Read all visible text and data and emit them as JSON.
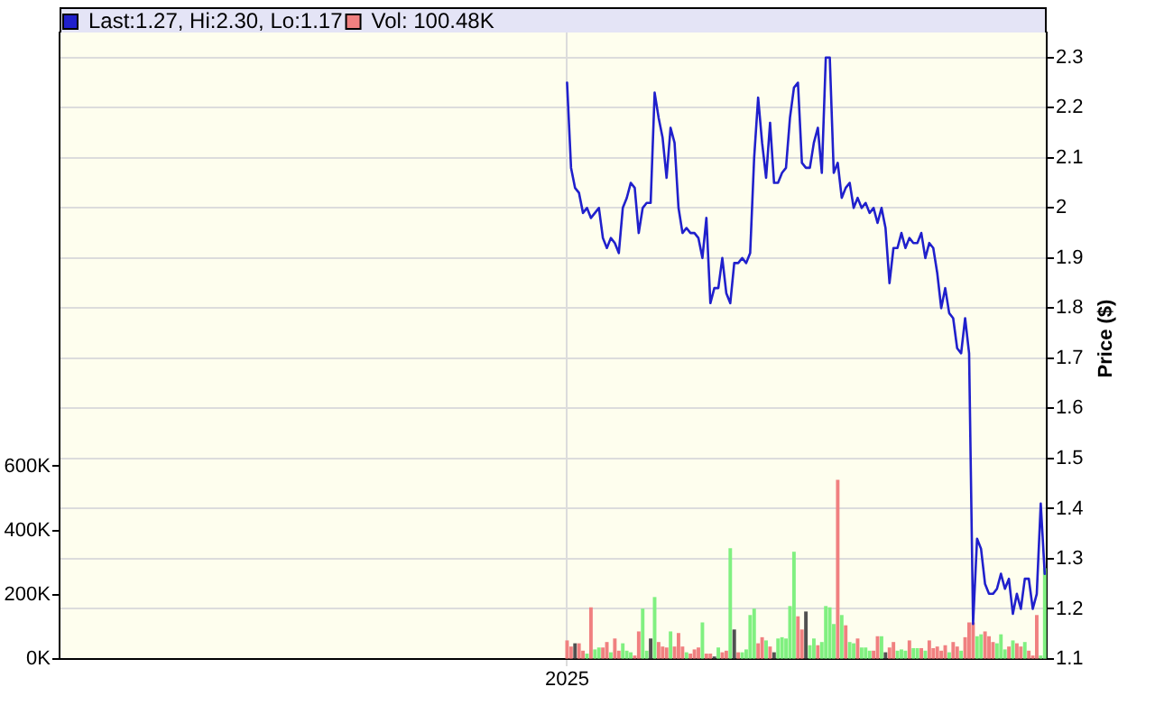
{
  "chart_data": {
    "type": "line",
    "categories": [
      null,
      null,
      null,
      null,
      null,
      null,
      null,
      null,
      null,
      null,
      null,
      null,
      null,
      null,
      null,
      null,
      null,
      null,
      null,
      null,
      null,
      null,
      null,
      null,
      null,
      null,
      null,
      null,
      null,
      null,
      null,
      null,
      null,
      null,
      null,
      null,
      null,
      null,
      null,
      null,
      null,
      null,
      null,
      null,
      null,
      null,
      null,
      null,
      null,
      null,
      null,
      null,
      null,
      null,
      null,
      null,
      null,
      null,
      null,
      null,
      null,
      null,
      null,
      null,
      null,
      null,
      null,
      null,
      null,
      null,
      null,
      null,
      null,
      null,
      null,
      null,
      null,
      null,
      null,
      null,
      null,
      null,
      null,
      null,
      null,
      null,
      null,
      null,
      null,
      null,
      null,
      null,
      null,
      null,
      null,
      null,
      null,
      null,
      null,
      null,
      null,
      null,
      null,
      null,
      null,
      null,
      null,
      null,
      null,
      null,
      null,
      null,
      null,
      null,
      null,
      null,
      null,
      null,
      null,
      null,
      null,
      null,
      null,
      null,
      null,
      null,
      null,
      "2025",
      null,
      null,
      null,
      null,
      null,
      null,
      null,
      null,
      null,
      null,
      null,
      null,
      null,
      null,
      null,
      null,
      null,
      null,
      null,
      null,
      null,
      null,
      null,
      null,
      null,
      null,
      null,
      null,
      null,
      null,
      null,
      null,
      null,
      null,
      null,
      null,
      null,
      null,
      null,
      null,
      null,
      null,
      null,
      null,
      null,
      null,
      null,
      null,
      null,
      null,
      null,
      null,
      null,
      null,
      null,
      null,
      null,
      null,
      null,
      null,
      null,
      null,
      null,
      null,
      null,
      null,
      null,
      null,
      null,
      null,
      null,
      null,
      null,
      null,
      null,
      null,
      null,
      null,
      null,
      null,
      null,
      null,
      null,
      null,
      null,
      null,
      null,
      null,
      null,
      null,
      null,
      null,
      null,
      null,
      null,
      null,
      null,
      null,
      null,
      null,
      null,
      null,
      null,
      null,
      null,
      null,
      null,
      null,
      null,
      null,
      null,
      null,
      null,
      null,
      null,
      null,
      null,
      null,
      null,
      null
    ],
    "series": [
      {
        "name": "Last:1.27, Hi:2.30, Lo:1.17",
        "axis": "y2",
        "color": "#2020cc",
        "values": [
          null,
          null,
          null,
          null,
          null,
          null,
          null,
          null,
          null,
          null,
          null,
          null,
          null,
          null,
          null,
          null,
          null,
          null,
          null,
          null,
          null,
          null,
          null,
          null,
          null,
          null,
          null,
          null,
          null,
          null,
          null,
          null,
          null,
          null,
          null,
          null,
          null,
          null,
          null,
          null,
          null,
          null,
          null,
          null,
          null,
          null,
          null,
          null,
          null,
          null,
          null,
          null,
          null,
          null,
          null,
          null,
          null,
          null,
          null,
          null,
          null,
          null,
          null,
          null,
          null,
          null,
          null,
          null,
          null,
          null,
          null,
          null,
          null,
          null,
          null,
          null,
          null,
          null,
          null,
          null,
          null,
          null,
          null,
          null,
          null,
          null,
          null,
          null,
          null,
          null,
          null,
          null,
          null,
          null,
          null,
          null,
          null,
          null,
          null,
          null,
          null,
          null,
          null,
          null,
          null,
          null,
          null,
          null,
          null,
          null,
          null,
          null,
          null,
          null,
          null,
          null,
          null,
          null,
          null,
          null,
          null,
          null,
          null,
          null,
          null,
          null,
          null,
          2.25,
          2.08,
          2.04,
          2.03,
          1.99,
          2.0,
          1.98,
          1.99,
          2.0,
          1.94,
          1.92,
          1.94,
          1.93,
          1.91,
          2.0,
          2.02,
          2.05,
          2.04,
          1.95,
          2.0,
          2.01,
          2.01,
          2.23,
          2.18,
          2.14,
          2.06,
          2.16,
          2.13,
          2.0,
          1.95,
          1.96,
          1.95,
          1.95,
          1.94,
          1.9,
          1.98,
          1.81,
          1.84,
          1.84,
          1.9,
          1.83,
          1.81,
          1.89,
          1.89,
          1.9,
          1.89,
          1.91,
          2.1,
          2.22,
          2.13,
          2.06,
          2.17,
          2.05,
          2.05,
          2.07,
          2.08,
          2.18,
          2.24,
          2.25,
          2.09,
          2.08,
          2.08,
          2.13,
          2.16,
          2.07,
          2.3,
          2.3,
          2.07,
          2.09,
          2.02,
          2.04,
          2.05,
          2.0,
          2.02,
          2.0,
          2.01,
          1.99,
          2.0,
          1.97,
          2.0,
          1.96,
          1.85,
          1.92,
          1.92,
          1.95,
          1.92,
          1.94,
          1.93,
          1.93,
          1.95,
          1.9,
          1.93,
          1.92,
          1.87,
          1.8,
          1.84,
          1.79,
          1.78,
          1.72,
          1.71,
          1.78,
          1.71,
          1.17,
          1.34,
          1.32,
          1.25,
          1.23,
          1.23,
          1.24,
          1.27,
          1.24,
          1.26,
          1.19,
          1.23,
          1.2,
          1.26,
          1.26,
          1.2,
          1.23,
          1.41,
          1.27
        ]
      },
      {
        "name": "Vol: 100.48K",
        "type": "bar",
        "axis": "y",
        "color": "#f08080",
        "values": [
          null,
          null,
          null,
          null,
          null,
          null,
          null,
          null,
          null,
          null,
          null,
          null,
          null,
          null,
          null,
          null,
          null,
          null,
          null,
          null,
          null,
          null,
          null,
          null,
          null,
          null,
          null,
          null,
          null,
          null,
          null,
          null,
          null,
          null,
          null,
          null,
          null,
          null,
          null,
          null,
          null,
          null,
          null,
          null,
          null,
          null,
          null,
          null,
          null,
          null,
          null,
          null,
          null,
          null,
          null,
          null,
          null,
          null,
          null,
          null,
          null,
          null,
          null,
          null,
          null,
          null,
          null,
          null,
          null,
          null,
          null,
          null,
          null,
          null,
          null,
          null,
          null,
          null,
          null,
          null,
          null,
          null,
          null,
          null,
          null,
          null,
          null,
          null,
          null,
          null,
          null,
          null,
          null,
          null,
          null,
          null,
          null,
          null,
          null,
          null,
          null,
          null,
          null,
          null,
          null,
          null,
          null,
          null,
          null,
          null,
          null,
          null,
          null,
          null,
          null,
          null,
          null,
          null,
          null,
          null,
          null,
          null,
          null,
          null,
          null,
          null,
          null,
          56000,
          37000,
          47000,
          47000,
          24000,
          15000,
          159000,
          28000,
          34000,
          34000,
          51000,
          19000,
          62000,
          24000,
          47000,
          24000,
          19000,
          9000,
          84000,
          155000,
          24000,
          62000,
          191000,
          51000,
          37000,
          34000,
          84000,
          37000,
          79000,
          37000,
          19000,
          15000,
          28000,
          34000,
          112000,
          15000,
          15000,
          6000,
          34000,
          19000,
          24000,
          343000,
          90000,
          19000,
          19000,
          28000,
          135000,
          155000,
          47000,
          66000,
          56000,
          37000,
          19000,
          62000,
          66000,
          62000,
          163000,
          332000,
          131000,
          90000,
          146000,
          41000,
          62000,
          41000,
          51000,
          163000,
          159000,
          107000,
          556000,
          135000,
          103000,
          51000,
          47000,
          62000,
          34000,
          34000,
          24000,
          24000,
          69000,
          69000,
          19000,
          34000,
          51000,
          24000,
          28000,
          24000,
          56000,
          32000,
          32000,
          32000,
          24000,
          56000,
          32000,
          37000,
          24000,
          41000,
          19000,
          51000,
          37000,
          24000,
          66000,
          112000,
          112000,
          69000,
          75000,
          84000,
          69000,
          51000,
          47000,
          75000,
          28000,
          37000,
          56000,
          47000,
          37000,
          51000,
          24000,
          9000,
          135000,
          9000,
          281000
        ],
        "colors": [
          null,
          null,
          null,
          null,
          null,
          null,
          null,
          null,
          null,
          null,
          null,
          null,
          null,
          null,
          null,
          null,
          null,
          null,
          null,
          null,
          null,
          null,
          null,
          null,
          null,
          null,
          null,
          null,
          null,
          null,
          null,
          null,
          null,
          null,
          null,
          null,
          null,
          null,
          null,
          null,
          null,
          null,
          null,
          null,
          null,
          null,
          null,
          null,
          null,
          null,
          null,
          null,
          null,
          null,
          null,
          null,
          null,
          null,
          null,
          null,
          null,
          null,
          null,
          null,
          null,
          null,
          null,
          null,
          null,
          null,
          null,
          null,
          null,
          null,
          null,
          null,
          null,
          null,
          null,
          null,
          null,
          null,
          null,
          null,
          null,
          null,
          null,
          null,
          null,
          null,
          null,
          null,
          null,
          null,
          null,
          null,
          null,
          null,
          null,
          null,
          null,
          null,
          null,
          null,
          null,
          null,
          null,
          null,
          null,
          null,
          null,
          null,
          null,
          null,
          null,
          null,
          null,
          null,
          null,
          null,
          null,
          null,
          null,
          null,
          null,
          null,
          null,
          "#f08080",
          "#f08080",
          "#505050",
          "#f08080",
          "#f08080",
          "#80f080",
          "#f08080",
          "#80f080",
          "#80f080",
          "#f08080",
          "#f08080",
          "#80f080",
          "#f08080",
          "#f08080",
          "#80f080",
          "#80f080",
          "#80f080",
          "#f08080",
          "#f08080",
          "#80f080",
          "#80f080",
          "#505050",
          "#80f080",
          "#f08080",
          "#f08080",
          "#f08080",
          "#80f080",
          "#f08080",
          "#f08080",
          "#f08080",
          "#80f080",
          "#f08080",
          "#f08080",
          "#f08080",
          "#80f080",
          "#f08080",
          "#f08080",
          "#505050",
          "#80f080",
          "#f08080",
          "#f08080",
          "#80f080",
          "#505050",
          "#f08080",
          "#80f080",
          "#80f080",
          "#80f080",
          "#80f080",
          "#f08080",
          "#f08080",
          "#80f080",
          "#f08080",
          "#505050",
          "#80f080",
          "#80f080",
          "#80f080",
          "#80f080",
          "#80f080",
          "#f08080",
          "#f08080",
          "#505050",
          "#80f080",
          "#80f080",
          "#f08080",
          "#80f080",
          "#80f080",
          "#80f080",
          "#80f080",
          "#f08080",
          "#80f080",
          "#f08080",
          "#80f080",
          "#80f080",
          "#f08080",
          "#80f080",
          "#80f080",
          "#80f080",
          "#f08080",
          "#f08080",
          "#80f080",
          "#505050",
          "#f08080",
          "#f08080",
          "#80f080",
          "#80f080",
          "#80f080",
          "#f08080",
          "#80f080",
          "#80f080",
          "#f08080",
          "#80f080",
          "#f08080",
          "#f08080",
          "#f08080",
          "#f08080",
          "#f08080",
          "#80f080",
          "#f08080",
          "#f08080",
          "#80f080",
          "#f08080",
          "#f08080",
          "#f08080",
          "#80f080",
          "#80f080",
          "#f08080",
          "#f08080",
          "#f08080",
          "#80f080",
          "#80f080",
          "#80f080",
          "#f08080",
          "#80f080",
          "#f08080",
          "#f08080",
          "#80f080",
          "#f08080",
          "#f08080",
          "#f08080",
          "#80f080",
          "#80f080"
        ]
      }
    ],
    "ylim": [
      0,
      1950000
    ],
    "yticks": [
      {
        "value": 0,
        "label": "0K"
      },
      {
        "value": 200000,
        "label": "200K"
      },
      {
        "value": 400000,
        "label": "400K"
      },
      {
        "value": 600000,
        "label": "600K"
      }
    ],
    "y2lim": [
      1.1,
      2.35
    ],
    "y2ticks": [
      {
        "value": 1.1,
        "label": "1.1"
      },
      {
        "value": 1.2,
        "label": "1.2"
      },
      {
        "value": 1.3,
        "label": "1.3"
      },
      {
        "value": 1.4,
        "label": "1.4"
      },
      {
        "value": 1.5,
        "label": "1.5"
      },
      {
        "value": 1.6,
        "label": "1.6"
      },
      {
        "value": 1.7,
        "label": "1.7"
      },
      {
        "value": 1.8,
        "label": "1.8"
      },
      {
        "value": 1.9,
        "label": "1.9"
      },
      {
        "value": 2,
        "label": "2"
      },
      {
        "value": 2.1,
        "label": "2.1"
      },
      {
        "value": 2.2,
        "label": "2.2"
      },
      {
        "value": 2.3,
        "label": "2.3"
      }
    ],
    "y2label": "Price ($)",
    "grid": true,
    "legend": "top left"
  }
}
